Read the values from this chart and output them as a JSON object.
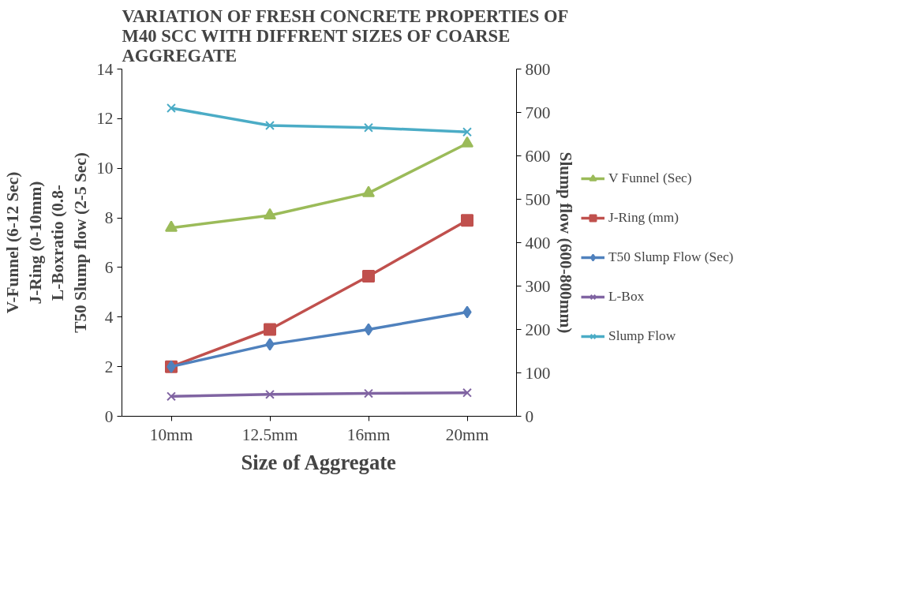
{
  "chart_data": {
    "type": "line",
    "title": "VARIATION OF FRESH CONCRETE PROPERTIES OF\nM40 SCC WITH DIFFRENT SIZES OF COARSE\nAGGREGATE",
    "xlabel": "Size of Aggregate",
    "ylabel": "V-Funnel (6-12 Sec)\nJ-Ring (0-10mm)\nL-Boxratio (0.8-\nT50 Slump flow (2-5 Sec)",
    "y2label": "Slump flow (600-800mm)",
    "categories": [
      "10mm",
      "12.5mm",
      "16mm",
      "20mm"
    ],
    "series": [
      {
        "name": "V Funnel (Sec)",
        "color": "#9bbb59",
        "marker": "triangle",
        "values": [
          7.6,
          8.1,
          9.0,
          11.0
        ]
      },
      {
        "name": "J-Ring (mm)",
        "color": "#c0504d",
        "marker": "square",
        "values": [
          2.0,
          3.5,
          5.65,
          7.9
        ]
      },
      {
        "name": "T50 Slump Flow (Sec)",
        "color": "#4f81bd",
        "marker": "diamond",
        "values": [
          2.0,
          2.9,
          3.5,
          4.2
        ]
      },
      {
        "name": "L-Box",
        "color": "#8064a2",
        "marker": "cross",
        "values": [
          0.8,
          0.88,
          0.92,
          0.95
        ]
      },
      {
        "name": "Slump Flow",
        "color": "#4bacc6",
        "marker": "cross",
        "axis": "y2",
        "values": [
          710,
          670,
          665,
          655
        ]
      }
    ],
    "ylim": [
      0,
      14
    ],
    "yticks": [
      0,
      2,
      4,
      6,
      8,
      10,
      12,
      14
    ],
    "y2lim": [
      0,
      800
    ],
    "y2ticks": [
      0,
      100,
      200,
      300,
      400,
      500,
      600,
      700,
      800
    ],
    "grid": false,
    "legend": "right",
    "line_style": "solid"
  }
}
